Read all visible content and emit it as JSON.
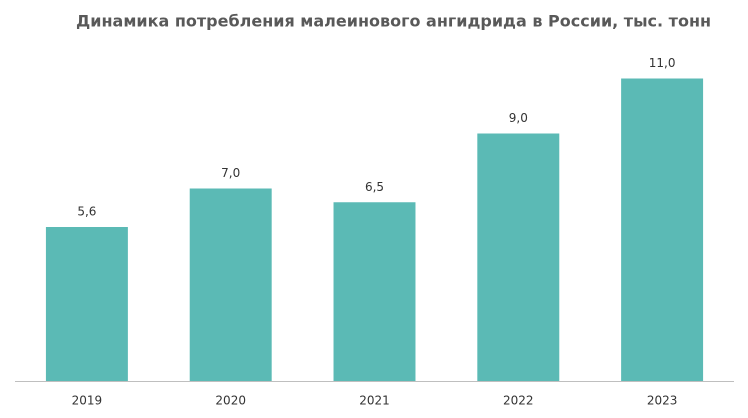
{
  "chart_data": {
    "type": "bar",
    "title": "Динамика потребления малеинового ангидрида в России, тыс. тонн",
    "categories": [
      "2019",
      "2020",
      "2021",
      "2022",
      "2023"
    ],
    "values": [
      5.6,
      7.0,
      6.5,
      9.0,
      11.0
    ],
    "value_labels": [
      "5,6",
      "7,0",
      "6,5",
      "9,0",
      "11,0"
    ],
    "color": "#5bbab5",
    "ylim": [
      0,
      12
    ]
  }
}
